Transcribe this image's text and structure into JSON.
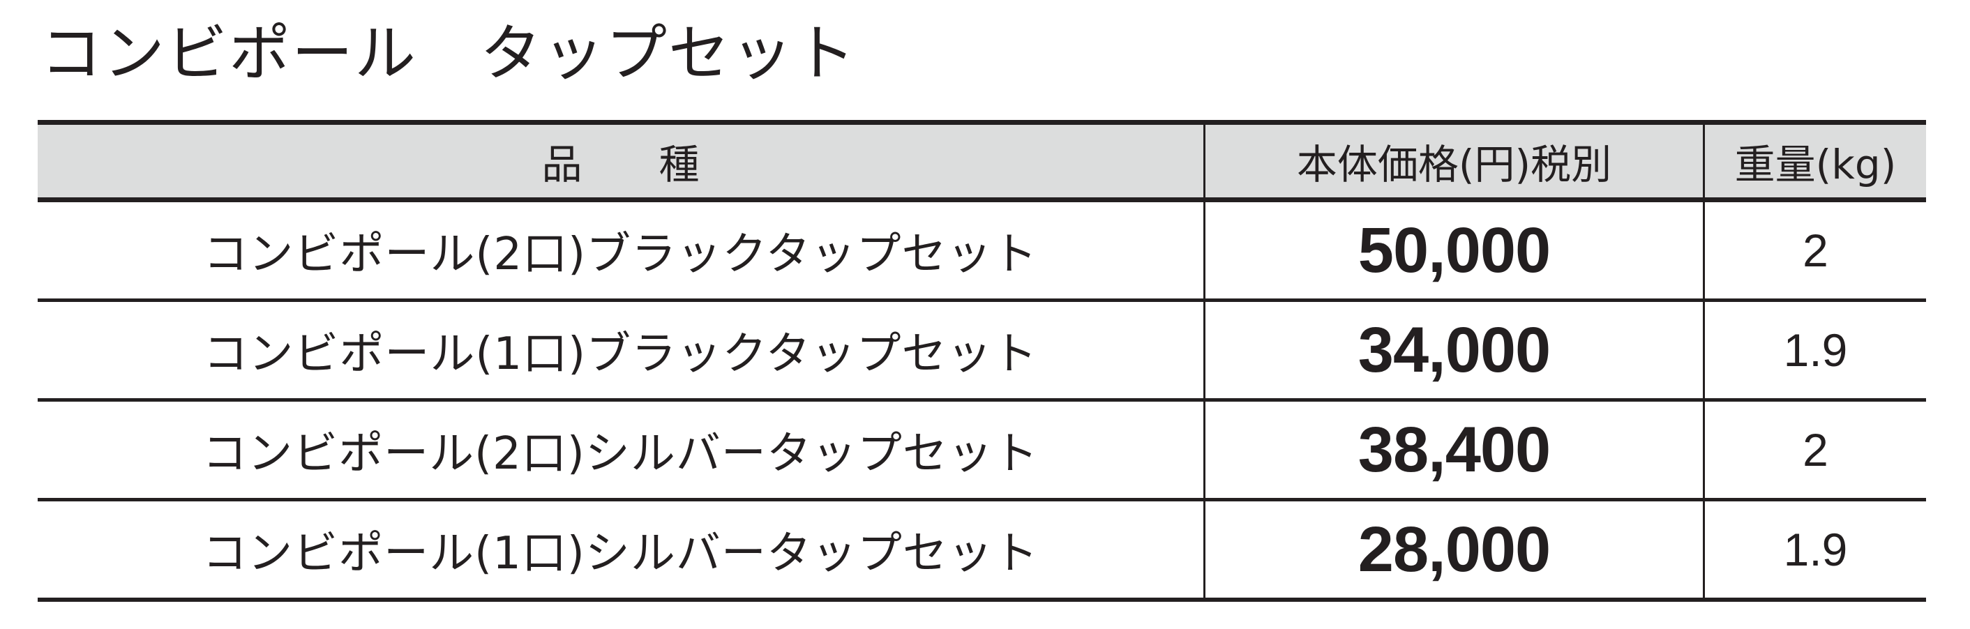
{
  "title": "コンビポール　タップセット",
  "table": {
    "headers": [
      "品種",
      "本体価格(円)税別",
      "重量(kg)"
    ],
    "rows": [
      {
        "name": "コンビポール(2口)ブラックタップセット",
        "price": "50,000",
        "weight": "2"
      },
      {
        "name": "コンビポール(1口)ブラックタップセット",
        "price": "34,000",
        "weight": "1.9"
      },
      {
        "name": "コンビポール(2口)シルバータップセット",
        "price": "38,400",
        "weight": "2"
      },
      {
        "name": "コンビポール(1口)シルバータップセット",
        "price": "28,000",
        "weight": "1.9"
      }
    ]
  },
  "colors": {
    "header_bg": "#dcdddd",
    "text": "#231f20"
  }
}
